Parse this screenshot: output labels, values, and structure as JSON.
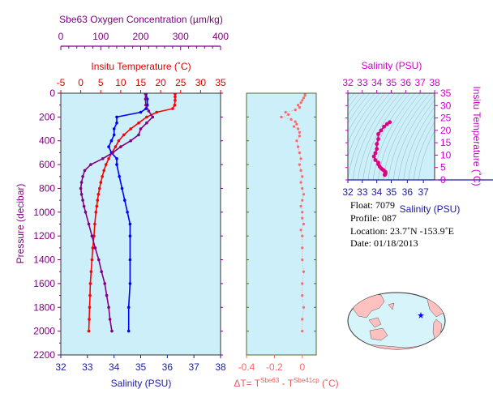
{
  "chart_data": [
    {
      "type": "line",
      "panel": "profiles",
      "ylabel": "Pressure (decibar)",
      "ylim": [
        0,
        2200
      ],
      "yticks": [
        0,
        200,
        400,
        600,
        800,
        1000,
        1200,
        1400,
        1600,
        1800,
        2000,
        2200
      ],
      "y_reversed": true,
      "axes": {
        "oxygen": {
          "label": "Sbe63 Oxygen Concentration (µm/kg)",
          "lim": [
            0,
            400
          ],
          "ticks": [
            0,
            100,
            200,
            300,
            400
          ],
          "color": "#800080"
        },
        "temperature": {
          "label": "Insitu Temperature (˚C)",
          "lim": [
            -5,
            35
          ],
          "ticks": [
            -5,
            0,
            5,
            10,
            15,
            20,
            25,
            30,
            35
          ],
          "color": "#e00000"
        },
        "salinity": {
          "label": "Salinity (PSU)",
          "lim": [
            32,
            38
          ],
          "ticks": [
            32,
            33,
            34,
            35,
            36,
            37,
            38
          ],
          "color": "#1a1aa6"
        }
      },
      "series": [
        {
          "axis": "temperature",
          "color": "#ff0000",
          "pressure": [
            5,
            30,
            60,
            100,
            130,
            160,
            200,
            250,
            300,
            350,
            400,
            450,
            500,
            550,
            600,
            650,
            700,
            750,
            800,
            850,
            900,
            950,
            1000,
            1100,
            1200,
            1300,
            1400,
            1500,
            1600,
            1700,
            1800,
            1900,
            2000
          ],
          "values": [
            23.6,
            23.6,
            23.6,
            23.5,
            23.0,
            19.0,
            16.5,
            14.5,
            12.5,
            10.8,
            9.5,
            8.7,
            7.8,
            7.0,
            6.3,
            5.8,
            5.4,
            5.0,
            4.7,
            4.4,
            4.2,
            4.0,
            3.8,
            3.5,
            3.3,
            3.0,
            2.8,
            2.6,
            2.4,
            2.3,
            2.2,
            2.1,
            2.0
          ]
        },
        {
          "axis": "salinity",
          "color": "#0000ff",
          "pressure": [
            5,
            50,
            100,
            130,
            160,
            200,
            250,
            300,
            350,
            400,
            450,
            500,
            550,
            600,
            700,
            800,
            900,
            1000,
            1100,
            1200,
            1400,
            1600,
            1800,
            2000
          ],
          "values": [
            35.2,
            35.25,
            35.25,
            35.2,
            35.0,
            34.1,
            34.1,
            34.0,
            34.0,
            33.9,
            33.8,
            33.9,
            34.1,
            34.1,
            34.2,
            34.3,
            34.4,
            34.5,
            34.6,
            34.6,
            34.6,
            34.6,
            34.55,
            34.55
          ]
        },
        {
          "axis": "oxygen",
          "color": "#800080",
          "pressure": [
            5,
            50,
            100,
            150,
            200,
            250,
            300,
            350,
            400,
            450,
            500,
            550,
            600,
            650,
            700,
            750,
            800,
            850,
            900,
            950,
            1000,
            1100,
            1200,
            1300,
            1400,
            1500,
            1600,
            1700,
            1800,
            1900,
            2000
          ],
          "values": [
            212,
            212,
            213,
            220,
            230,
            215,
            200,
            195,
            175,
            150,
            130,
            105,
            75,
            60,
            55,
            52,
            50,
            52,
            55,
            58,
            62,
            70,
            78,
            86,
            95,
            102,
            110,
            115,
            120,
            123,
            128
          ]
        }
      ]
    },
    {
      "type": "scatter",
      "panel": "delta-temperature",
      "xlabel_prefix": "ΔT= T",
      "xlabel_sup1": "Sbe63",
      "xlabel_minus": " - T",
      "xlabel_sup2": "Sbe41cp",
      "xlabel_unit": " (˚C)",
      "xlim": [
        -0.4,
        0.1
      ],
      "xticks": [
        -0.4,
        -0.2,
        0.0
      ],
      "ylim": [
        0,
        2200
      ],
      "color": "#ff6666",
      "pressure": [
        5,
        20,
        40,
        60,
        80,
        100,
        120,
        140,
        160,
        180,
        200,
        220,
        240,
        260,
        280,
        300,
        330,
        360,
        400,
        450,
        500,
        550,
        600,
        650,
        700,
        750,
        800,
        850,
        900,
        950,
        1000,
        1050,
        1100,
        1150,
        1200,
        1300,
        1400,
        1500,
        1600,
        1700,
        1800,
        1900,
        2000
      ],
      "values": [
        0.02,
        0.02,
        0.01,
        0.0,
        -0.01,
        -0.03,
        -0.02,
        -0.05,
        -0.12,
        -0.1,
        -0.15,
        -0.08,
        -0.05,
        -0.04,
        -0.06,
        -0.03,
        -0.02,
        -0.02,
        -0.04,
        -0.03,
        -0.02,
        -0.01,
        -0.02,
        -0.01,
        0.0,
        -0.01,
        0.0,
        0.01,
        0.0,
        -0.01,
        0.0,
        0.0,
        0.01,
        -0.01,
        0.0,
        0.0,
        0.0,
        0.01,
        0.0,
        0.0,
        0.01,
        0.0,
        0.0
      ]
    },
    {
      "type": "scatter",
      "panel": "ts-diagram",
      "title": "Salinity (PSU)",
      "xlabel": "Salinity (PSU)",
      "ylabel": "Insitu Temperature (˚C)",
      "xlim": [
        32,
        38
      ],
      "ylim": [
        0,
        35
      ],
      "xticks_top": [
        32,
        33,
        34,
        35,
        36,
        37,
        38
      ],
      "xticks_bottom": [
        32,
        33,
        34,
        35,
        36,
        37
      ],
      "yticks": [
        0,
        5,
        10,
        15,
        20,
        25,
        30,
        35
      ],
      "color": "#e0007f",
      "salinity": [
        34.55,
        34.55,
        34.6,
        34.6,
        34.6,
        34.5,
        34.4,
        34.3,
        34.2,
        34.1,
        34.1,
        33.9,
        33.8,
        33.9,
        34.0,
        34.0,
        34.1,
        34.1,
        34.3,
        34.5,
        34.7,
        34.9
      ],
      "temperature": [
        2.0,
        2.2,
        2.5,
        2.8,
        3.2,
        3.8,
        4.2,
        4.7,
        5.4,
        6.3,
        7.0,
        8.0,
        9.5,
        10.8,
        12.5,
        14.5,
        16.5,
        18.5,
        20.0,
        21.5,
        22.5,
        23.3
      ]
    }
  ],
  "float_info": {
    "float": "Float:  7079",
    "profile": "Profile:  087",
    "location": "Location:  23.7˚N  -153.9˚E",
    "date": "Date:  01/18/2013"
  },
  "map": {
    "marker_color": "#0000ff",
    "land_color": "#ffc0c0",
    "ocean_color": "#d8f4fb"
  },
  "colors": {
    "plot_bg": "#cdeffa",
    "frame": "#333333"
  }
}
